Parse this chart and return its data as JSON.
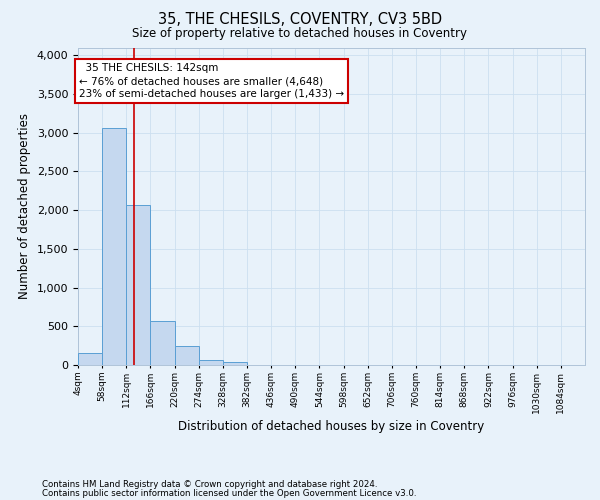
{
  "title": "35, THE CHESILS, COVENTRY, CV3 5BD",
  "subtitle": "Size of property relative to detached houses in Coventry",
  "xlabel": "Distribution of detached houses by size in Coventry",
  "ylabel": "Number of detached properties",
  "footer_line1": "Contains HM Land Registry data © Crown copyright and database right 2024.",
  "footer_line2": "Contains public sector information licensed under the Open Government Licence v3.0.",
  "bar_labels": [
    "4sqm",
    "58sqm",
    "112sqm",
    "166sqm",
    "220sqm",
    "274sqm",
    "328sqm",
    "382sqm",
    "436sqm",
    "490sqm",
    "544sqm",
    "598sqm",
    "652sqm",
    "706sqm",
    "760sqm",
    "814sqm",
    "868sqm",
    "922sqm",
    "976sqm",
    "1030sqm",
    "1084sqm"
  ],
  "bar_values": [
    150,
    3060,
    2060,
    570,
    240,
    65,
    40,
    0,
    0,
    0,
    0,
    0,
    0,
    0,
    0,
    0,
    0,
    0,
    0,
    0,
    0
  ],
  "bar_color": "#c5d8ef",
  "bar_edge_color": "#5a9fd4",
  "grid_color": "#ccdff0",
  "background_color": "#e8f2fa",
  "annotation_text": "  35 THE CHESILS: 142sqm\n← 76% of detached houses are smaller (4,648)\n23% of semi-detached houses are larger (1,433) →",
  "annotation_box_color": "#ffffff",
  "annotation_box_edge": "#cc0000",
  "vline_color": "#cc0000",
  "vline_x_data": 130,
  "ylim": [
    0,
    4100
  ],
  "yticks": [
    0,
    500,
    1000,
    1500,
    2000,
    2500,
    3000,
    3500,
    4000
  ],
  "bin_width": 54,
  "n_bars": 21,
  "xstart": 4
}
